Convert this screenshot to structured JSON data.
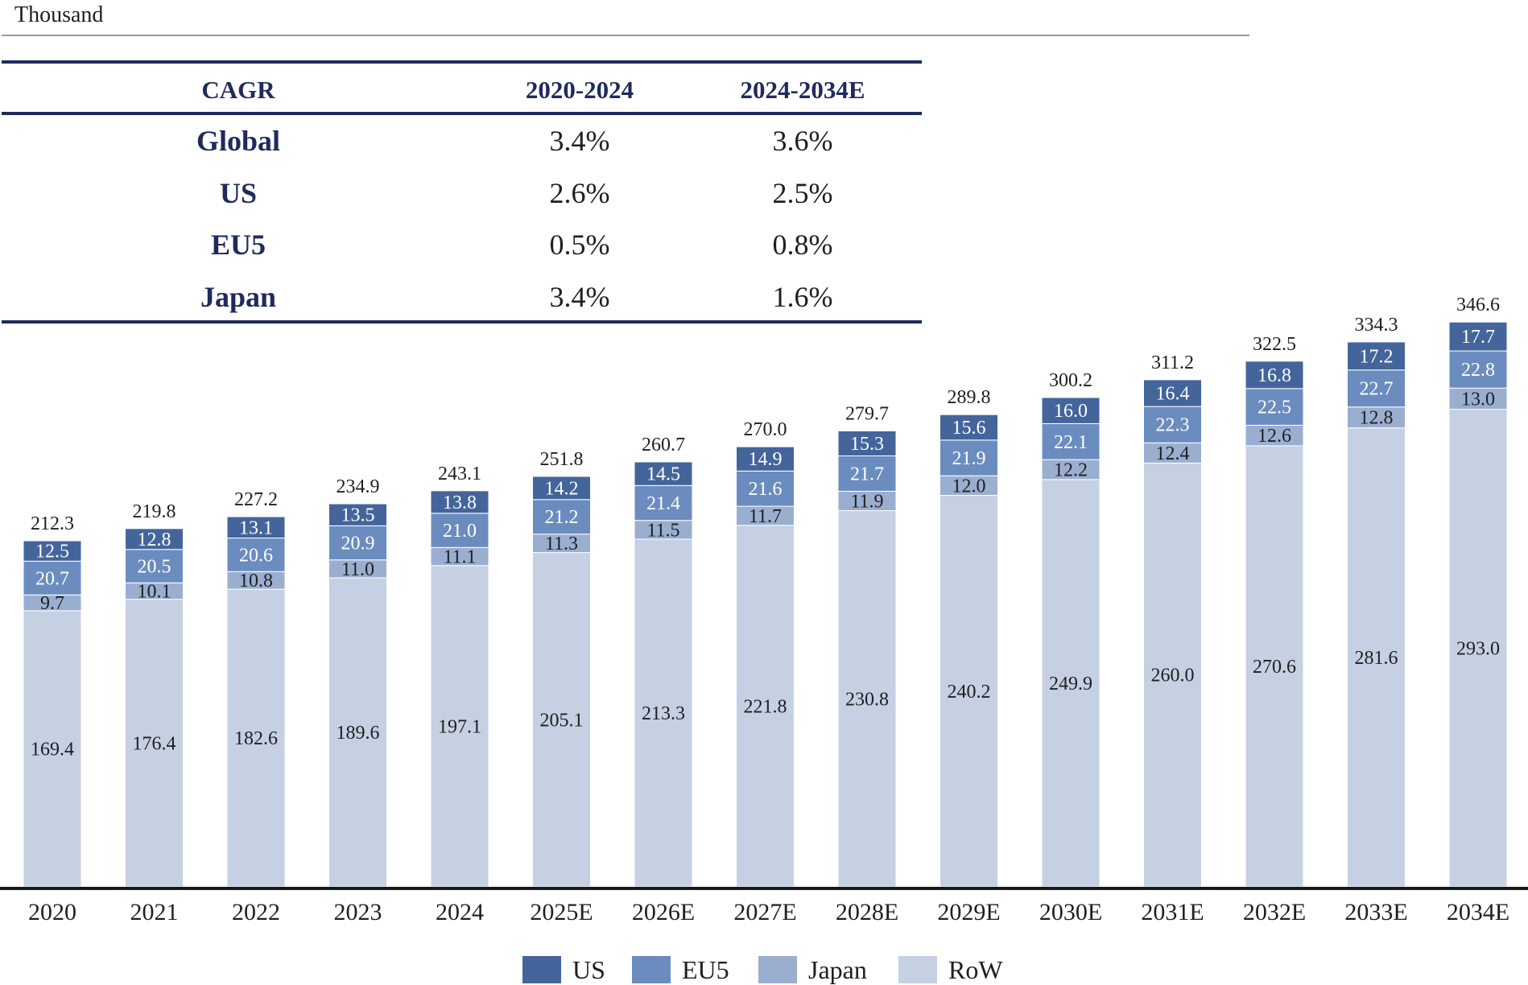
{
  "unit_label": "Thousand",
  "cagr_table": {
    "headers": [
      "CAGR",
      "2020-2024",
      "2024-2034E"
    ],
    "rows": [
      {
        "label": "Global",
        "v1": "3.4%",
        "v2": "3.6%"
      },
      {
        "label": "US",
        "v1": "2.6%",
        "v2": "2.5%"
      },
      {
        "label": "EU5",
        "v1": "0.5%",
        "v2": "0.8%"
      },
      {
        "label": "Japan",
        "v1": "3.4%",
        "v2": "1.6%"
      }
    ]
  },
  "chart_data": {
    "type": "bar",
    "stacked": true,
    "title": "",
    "xlabel": "",
    "ylabel": "Thousand",
    "ylim": [
      0,
      346.6
    ],
    "grid": false,
    "legend_position": "bottom",
    "categories": [
      "2020",
      "2021",
      "2022",
      "2023",
      "2024",
      "2025E",
      "2026E",
      "2027E",
      "2028E",
      "2029E",
      "2030E",
      "2031E",
      "2032E",
      "2033E",
      "2034E"
    ],
    "totals": [
      "212.3",
      "219.8",
      "227.2",
      "234.9",
      "243.1",
      "251.8",
      "260.7",
      "270.0",
      "279.7",
      "289.8",
      "300.2",
      "311.2",
      "322.5",
      "334.3",
      "346.6"
    ],
    "series": [
      {
        "name": "RoW",
        "color": "#c5d0e3",
        "label_color": "#1f1f1f",
        "values": [
          169.4,
          176.4,
          182.6,
          189.6,
          197.1,
          205.1,
          213.3,
          221.8,
          230.8,
          240.2,
          249.9,
          260.0,
          270.6,
          281.6,
          293.0
        ],
        "labels": [
          "169.4",
          "176.4",
          "182.6",
          "189.6",
          "197.1",
          "205.1",
          "213.3",
          "221.8",
          "230.8",
          "240.2",
          "249.9",
          "260.0",
          "270.6",
          "281.6",
          "293.0"
        ]
      },
      {
        "name": "Japan",
        "color": "#9aaed0",
        "label_color": "#1f1f1f",
        "values": [
          9.7,
          10.1,
          10.8,
          11.0,
          11.1,
          11.3,
          11.5,
          11.7,
          11.9,
          12.0,
          12.2,
          12.4,
          12.6,
          12.8,
          13.0
        ],
        "labels": [
          "9.7",
          "10.1",
          "10.8",
          "11.0",
          "11.1",
          "11.3",
          "11.5",
          "11.7",
          "11.9",
          "12.0",
          "12.2",
          "12.4",
          "12.6",
          "12.8",
          "13.0"
        ]
      },
      {
        "name": "EU5",
        "color": "#6b8cbe",
        "label_color": "#ffffff",
        "values": [
          20.7,
          20.5,
          20.6,
          20.9,
          21.0,
          21.2,
          21.4,
          21.6,
          21.7,
          21.9,
          22.1,
          22.3,
          22.5,
          22.7,
          22.8
        ],
        "labels": [
          "20.7",
          "20.5",
          "20.6",
          "20.9",
          "21.0",
          "21.2",
          "21.4",
          "21.6",
          "21.7",
          "21.9",
          "22.1",
          "22.3",
          "22.5",
          "22.7",
          "22.8"
        ]
      },
      {
        "name": "US",
        "color": "#44659b",
        "label_color": "#ffffff",
        "values": [
          12.5,
          12.8,
          13.1,
          13.5,
          13.8,
          14.2,
          14.5,
          14.9,
          15.3,
          15.6,
          16.0,
          16.4,
          16.8,
          17.2,
          17.7
        ],
        "labels": [
          "12.5",
          "12.8",
          "13.1",
          "13.5",
          "13.8",
          "14.2",
          "14.5",
          "14.9",
          "15.3",
          "15.6",
          "16.0",
          "16.4",
          "16.8",
          "17.2",
          "17.7"
        ]
      }
    ]
  }
}
